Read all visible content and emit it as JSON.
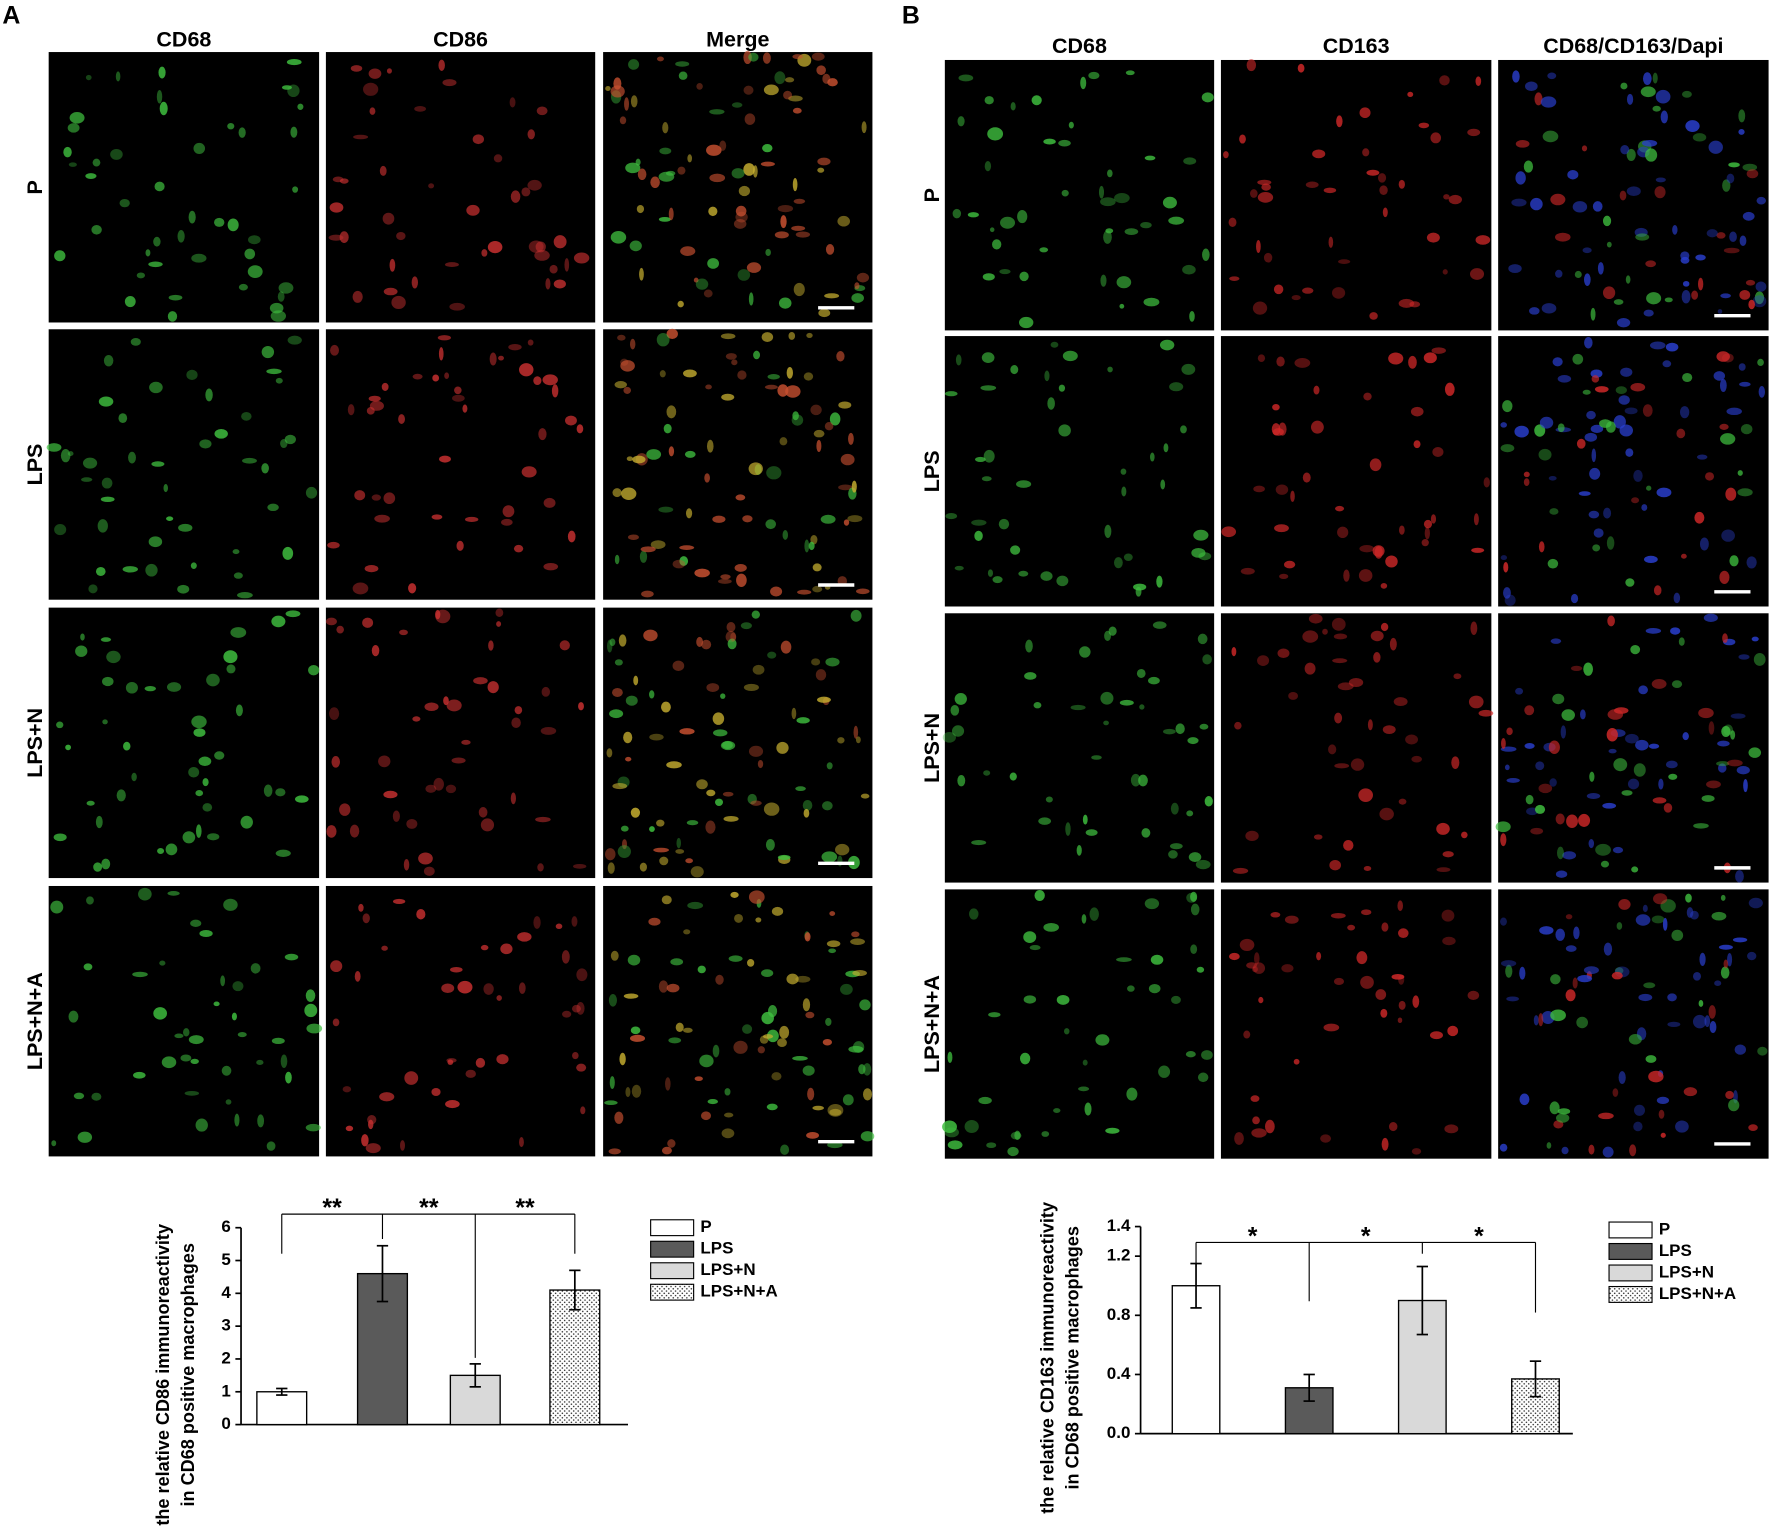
{
  "panels": [
    {
      "label": "A",
      "columns": [
        "CD68",
        "CD86",
        "Merge"
      ],
      "rows": [
        "P",
        "LPS",
        "LPS+N",
        "LPS+N+A"
      ]
    },
    {
      "label": "B",
      "columns": [
        "CD68",
        "CD163",
        "CD68/CD163/Dapi"
      ],
      "rows": [
        "P",
        "LPS",
        "LPS+N",
        "LPS+N+A"
      ]
    }
  ],
  "chart_data": [
    {
      "type": "bar",
      "y_label": [
        "the relative  CD86 immunoreactivity",
        "in CD68 positive  macrophages"
      ],
      "categories": [
        "P",
        "LPS",
        "LPS+N",
        "LPS+N+A"
      ],
      "values": [
        1.0,
        4.6,
        1.5,
        4.1
      ],
      "errors": [
        0.1,
        0.85,
        0.35,
        0.6
      ],
      "colors": [
        "#ffffff",
        "#5a5a5a",
        "#d9d9d9",
        "#ffffff"
      ],
      "patterns": [
        "solid",
        "solid",
        "solid",
        "dots"
      ],
      "annotations": [
        "**",
        "**",
        "**"
      ],
      "ylim": [
        0,
        6
      ],
      "yticks": [
        0,
        1,
        2,
        3,
        4,
        5,
        6
      ]
    },
    {
      "type": "bar",
      "y_label": [
        "the relative  CD163 immunoreactivity",
        "in CD68 positive  macrophages"
      ],
      "categories": [
        "P",
        "LPS",
        "LPS+N",
        "LPS+N+A"
      ],
      "values": [
        1.0,
        0.31,
        0.9,
        0.37
      ],
      "errors": [
        0.15,
        0.09,
        0.23,
        0.12
      ],
      "colors": [
        "#ffffff",
        "#5a5a5a",
        "#d9d9d9",
        "#ffffff"
      ],
      "patterns": [
        "solid",
        "solid",
        "solid",
        "dots"
      ],
      "annotations": [
        "*",
        "*",
        "*"
      ],
      "ylim": [
        0,
        1.4
      ],
      "yticks": [
        {
          "value": 0,
          "label": "0.0"
        },
        0.4,
        0.8,
        1.2,
        1.4
      ]
    }
  ]
}
